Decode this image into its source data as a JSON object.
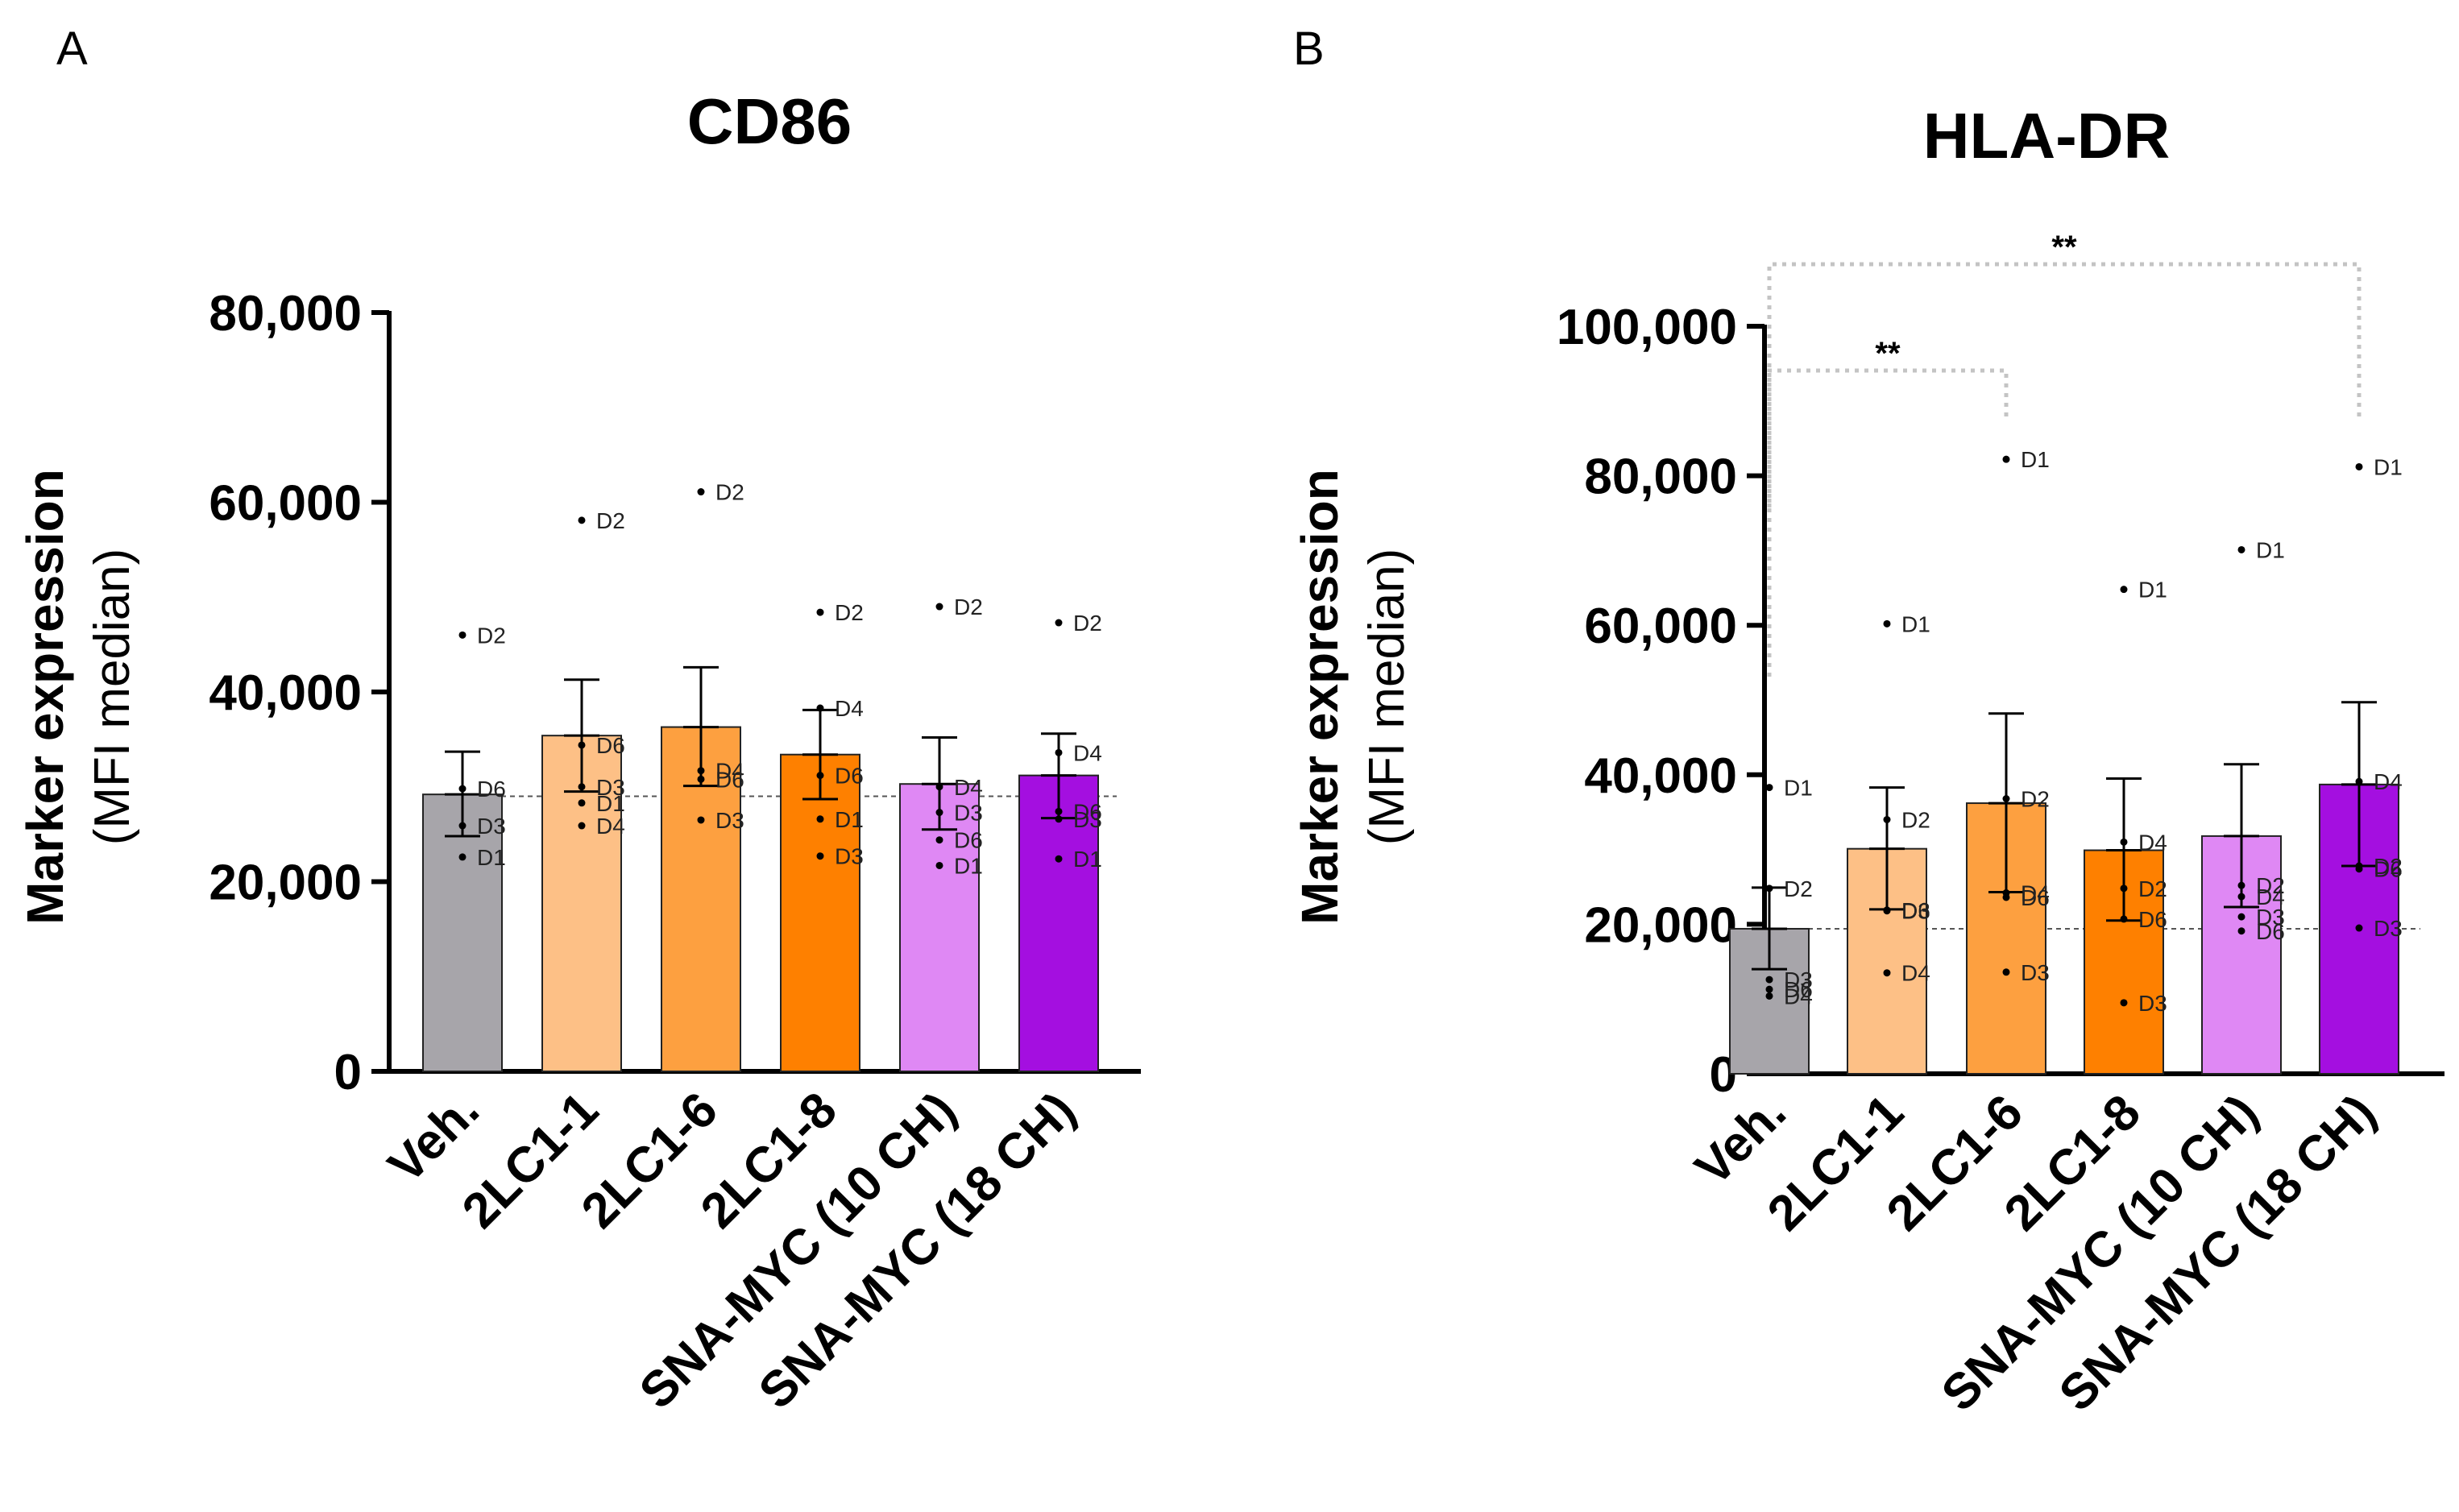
{
  "chart_data": [
    {
      "panel": "A",
      "type": "bar",
      "title": "CD86",
      "ylabel_main": "Marker expression",
      "ylabel_sub": "(MFI median)",
      "xlabel": "",
      "ylim": [
        0,
        80000
      ],
      "ytick_values": [
        0,
        20000,
        40000,
        60000,
        80000
      ],
      "ytick_labels": [
        "0",
        "20,000",
        "40,000",
        "60,000",
        "80,000"
      ],
      "reference_line": 29000,
      "categories": [
        "Veh.",
        "2LC1-1",
        "2LC1-6",
        "2LC1-8",
        "SNA-MYC (10 CH)",
        "SNA-MYC (18 CH)"
      ],
      "colors": [
        "#a7a5aa",
        "#fdc086",
        "#fda040",
        "#fe8000",
        "#df88f4",
        "#a40fe0"
      ],
      "values": [
        29200,
        35400,
        36300,
        33400,
        30300,
        31200
      ],
      "err_upper": [
        33700,
        41300,
        42600,
        38100,
        35200,
        35600
      ],
      "err_lower": [
        24800,
        29500,
        30100,
        28700,
        25500,
        26700
      ],
      "points": [
        [
          {
            "id": "D2",
            "v": 46000
          },
          {
            "id": "D6",
            "v": 29800
          },
          {
            "id": "D3",
            "v": 25900
          },
          {
            "id": "D1",
            "v": 22600
          }
        ],
        [
          {
            "id": "D2",
            "v": 58100
          },
          {
            "id": "D6",
            "v": 34400
          },
          {
            "id": "D3",
            "v": 30000
          },
          {
            "id": "D1",
            "v": 28300
          },
          {
            "id": "D4",
            "v": 25900
          }
        ],
        [
          {
            "id": "D2",
            "v": 61100
          },
          {
            "id": "D4",
            "v": 31700
          },
          {
            "id": "D6",
            "v": 30800
          },
          {
            "id": "D3",
            "v": 26500
          }
        ],
        [
          {
            "id": "D2",
            "v": 48400
          },
          {
            "id": "D4",
            "v": 38300
          },
          {
            "id": "D6",
            "v": 31200
          },
          {
            "id": "D1",
            "v": 26600
          },
          {
            "id": "D3",
            "v": 22700
          }
        ],
        [
          {
            "id": "D2",
            "v": 49000
          },
          {
            "id": "D4",
            "v": 30000
          },
          {
            "id": "D3",
            "v": 27300
          },
          {
            "id": "D6",
            "v": 24400
          },
          {
            "id": "D1",
            "v": 21700
          }
        ],
        [
          {
            "id": "D2",
            "v": 47300
          },
          {
            "id": "D4",
            "v": 33600
          },
          {
            "id": "D6",
            "v": 27400
          },
          {
            "id": "D3",
            "v": 26600
          },
          {
            "id": "D1",
            "v": 22400
          }
        ]
      ],
      "significance": []
    },
    {
      "panel": "B",
      "type": "bar",
      "title": "HLA-DR",
      "ylabel_main": "Marker expression",
      "ylabel_sub": "(MFI median)",
      "xlabel": "",
      "ylim": [
        0,
        100000
      ],
      "ytick_values": [
        0,
        20000,
        40000,
        60000,
        80000,
        100000
      ],
      "ytick_labels": [
        "0",
        "20,000",
        "40,000",
        "60,000",
        "80,000",
        "100,000"
      ],
      "reference_line": 19400,
      "categories": [
        "Veh.",
        "2LC1-1",
        "2LC1-6",
        "2LC1-8",
        "SNA-MYC (10 CH)",
        "SNA-MYC (18 CH)"
      ],
      "colors": [
        "#a7a5aa",
        "#fdc086",
        "#fda040",
        "#fe8000",
        "#df88f4",
        "#a40fe0"
      ],
      "values": [
        19400,
        30100,
        36200,
        29900,
        31800,
        38700
      ],
      "err_upper": [
        24900,
        38300,
        48200,
        39500,
        41400,
        49700
      ],
      "err_lower": [
        14000,
        22000,
        24300,
        20500,
        22300,
        27800
      ],
      "points": [
        [
          {
            "id": "D1",
            "v": 38300
          },
          {
            "id": "D2",
            "v": 24800
          },
          {
            "id": "D3",
            "v": 12600
          },
          {
            "id": "D6",
            "v": 11300
          },
          {
            "id": "D4",
            "v": 10400
          }
        ],
        [
          {
            "id": "D1",
            "v": 60200
          },
          {
            "id": "D2",
            "v": 34000
          },
          {
            "id": "D6",
            "v": 21900
          },
          {
            "id": "D3",
            "v": 21800
          },
          {
            "id": "D4",
            "v": 13500
          }
        ],
        [
          {
            "id": "D1",
            "v": 82200
          },
          {
            "id": "D2",
            "v": 36800
          },
          {
            "id": "D4",
            "v": 24200
          },
          {
            "id": "D6",
            "v": 23600
          },
          {
            "id": "D3",
            "v": 13600
          }
        ],
        [
          {
            "id": "D1",
            "v": 64800
          },
          {
            "id": "D4",
            "v": 31000
          },
          {
            "id": "D2",
            "v": 24800
          },
          {
            "id": "D6",
            "v": 20700
          },
          {
            "id": "D3",
            "v": 9500
          }
        ],
        [
          {
            "id": "D1",
            "v": 70100
          },
          {
            "id": "D2",
            "v": 25200
          },
          {
            "id": "D4",
            "v": 23700
          },
          {
            "id": "D3",
            "v": 21000
          },
          {
            "id": "D6",
            "v": 19100
          }
        ],
        [
          {
            "id": "D1",
            "v": 81200
          },
          {
            "id": "D4",
            "v": 39100
          },
          {
            "id": "D2",
            "v": 27800
          },
          {
            "id": "D6",
            "v": 27400
          },
          {
            "id": "D3",
            "v": 19500
          }
        ]
      ],
      "significance": [
        {
          "from": 0,
          "to": 2,
          "label": "**"
        },
        {
          "from": 0,
          "to": 5,
          "label": "**"
        }
      ]
    }
  ]
}
